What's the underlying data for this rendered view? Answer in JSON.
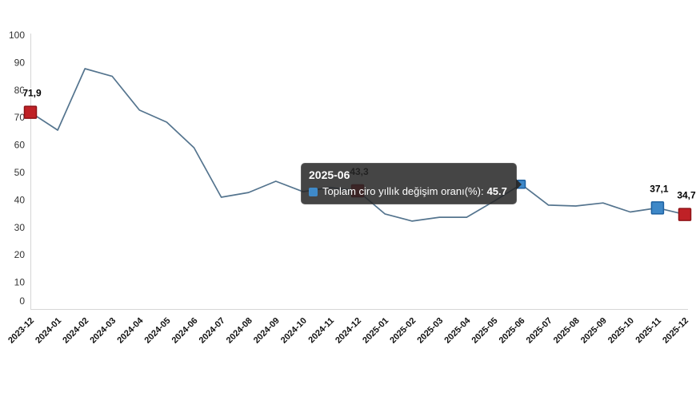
{
  "window": {
    "background": "#ffffff"
  },
  "chart_data": {
    "type": "line",
    "title": "",
    "xlabel": "",
    "ylabel": "",
    "categories": [
      "2023-12",
      "2024-01",
      "2024-02",
      "2024-03",
      "2024-04",
      "2024-05",
      "2024-06",
      "2024-07",
      "2024-08",
      "2024-09",
      "2024-10",
      "2024-11",
      "2024-12",
      "2025-01",
      "2025-02",
      "2025-03",
      "2025-04",
      "2025-05",
      "2025-06",
      "2025-07",
      "2025-08",
      "2025-09",
      "2025-10",
      "2025-11",
      "2025-12"
    ],
    "series": [
      {
        "name": "Toplam ciro yıllık değişim oranı(%)",
        "color": "#54748e",
        "values": [
          71.9,
          65.4,
          87.8,
          85.0,
          72.7,
          68.3,
          59.0,
          41.0,
          42.7,
          46.8,
          43.0,
          44.5,
          43.3,
          34.9,
          32.3,
          33.7,
          33.7,
          39.5,
          45.7,
          38.1,
          37.8,
          38.9,
          35.6,
          37.1,
          34.7
        ]
      }
    ],
    "ylim": [
      0,
      100
    ],
    "yticks": [
      0,
      10,
      20,
      30,
      40,
      50,
      60,
      70,
      80,
      90,
      100
    ],
    "grid": false,
    "legend_position": "none",
    "axis_color": "#d6d6d6",
    "marked_points": [
      {
        "index": 0,
        "category": "2023-12",
        "value": 71.9,
        "label": "71,9",
        "fill": "#bf2126",
        "border": "#8e1317",
        "size": 15
      },
      {
        "index": 12,
        "category": "2024-12",
        "value": 43.3,
        "label": "43,3",
        "fill": "#bf2126",
        "border": "#8e1317",
        "size": 15
      },
      {
        "index": 18,
        "category": "2025-06",
        "value": 45.7,
        "label": "",
        "fill": "#3e88c8",
        "border": "#1d60a0",
        "size": 10
      },
      {
        "index": 23,
        "category": "2025-11",
        "value": 37.1,
        "label": "37,1",
        "fill": "#3e88c8",
        "border": "#1d60a0",
        "size": 15
      },
      {
        "index": 24,
        "category": "2025-12",
        "value": 34.7,
        "label": "34,7",
        "fill": "#bf2126",
        "border": "#8e1317",
        "size": 15
      }
    ]
  },
  "tooltip": {
    "header": "2025-06",
    "series_label": "Toplam ciro yıllık değişim oranı(%):",
    "value": "45.7",
    "swatch_color": "#3f8ac9"
  }
}
